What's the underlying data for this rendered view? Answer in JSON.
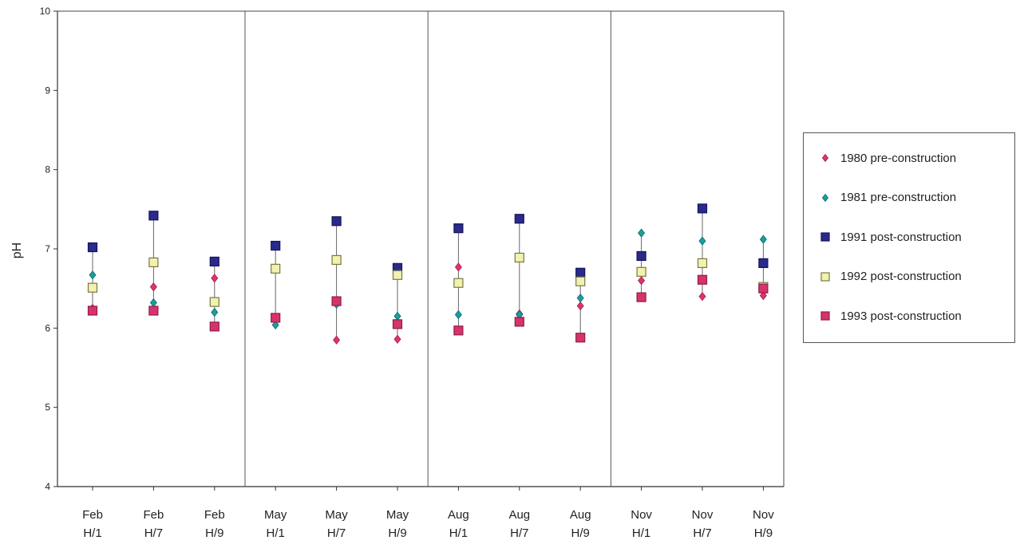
{
  "chart_data": {
    "type": "scatter",
    "ylabel": "pH",
    "xlabel": "",
    "ylim": [
      4,
      10
    ],
    "yticks": [
      "4",
      "5",
      "6",
      "7",
      "8",
      "9",
      "10"
    ],
    "categories": [
      [
        "Feb",
        "H/1"
      ],
      [
        "Feb",
        "H/7"
      ],
      [
        "Feb",
        "H/9"
      ],
      [
        "May",
        "H/1"
      ],
      [
        "May",
        "H/7"
      ],
      [
        "May",
        "H/9"
      ],
      [
        "Aug",
        "H/1"
      ],
      [
        "Aug",
        "H/7"
      ],
      [
        "Aug",
        "H/9"
      ],
      [
        "Nov",
        "H/1"
      ],
      [
        "Nov",
        "H/7"
      ],
      [
        "Nov",
        "H/9"
      ]
    ],
    "group_dividers_after": [
      2,
      5,
      8
    ],
    "legend_placement": "right",
    "grid": false,
    "series": [
      {
        "name": "1980 pre-construction",
        "marker": "diamond",
        "color": "#e0336e",
        "edge": "#a01d4c",
        "values": [
          6.25,
          6.52,
          6.63,
          6.12,
          5.85,
          5.86,
          6.77,
          6.18,
          6.28,
          6.6,
          6.4,
          6.41
        ]
      },
      {
        "name": "1981 pre-construction",
        "marker": "diamond",
        "color": "#1a9e9e",
        "edge": "#0c6a6a",
        "values": [
          6.67,
          6.32,
          6.2,
          6.04,
          6.3,
          6.15,
          6.17,
          6.17,
          6.38,
          7.2,
          7.1,
          7.12
        ]
      },
      {
        "name": "1991 post-construction",
        "marker": "square",
        "color": "#2a2a8c",
        "edge": "#14145a",
        "values": [
          7.02,
          7.42,
          6.84,
          7.04,
          7.35,
          6.76,
          7.26,
          7.38,
          6.7,
          6.91,
          7.51,
          6.82
        ]
      },
      {
        "name": "1992 post-construction",
        "marker": "square",
        "color": "#f2f2b0",
        "edge": "#777744",
        "values": [
          6.51,
          6.83,
          6.33,
          6.75,
          6.86,
          6.67,
          6.57,
          6.89,
          6.59,
          6.71,
          6.82,
          6.52
        ]
      },
      {
        "name": "1993 post-construction",
        "marker": "square",
        "color": "#d6336e",
        "edge": "#8e1d48",
        "values": [
          6.22,
          6.22,
          6.02,
          6.13,
          6.34,
          6.05,
          5.97,
          6.08,
          5.88,
          6.39,
          6.61,
          6.5
        ]
      }
    ]
  }
}
